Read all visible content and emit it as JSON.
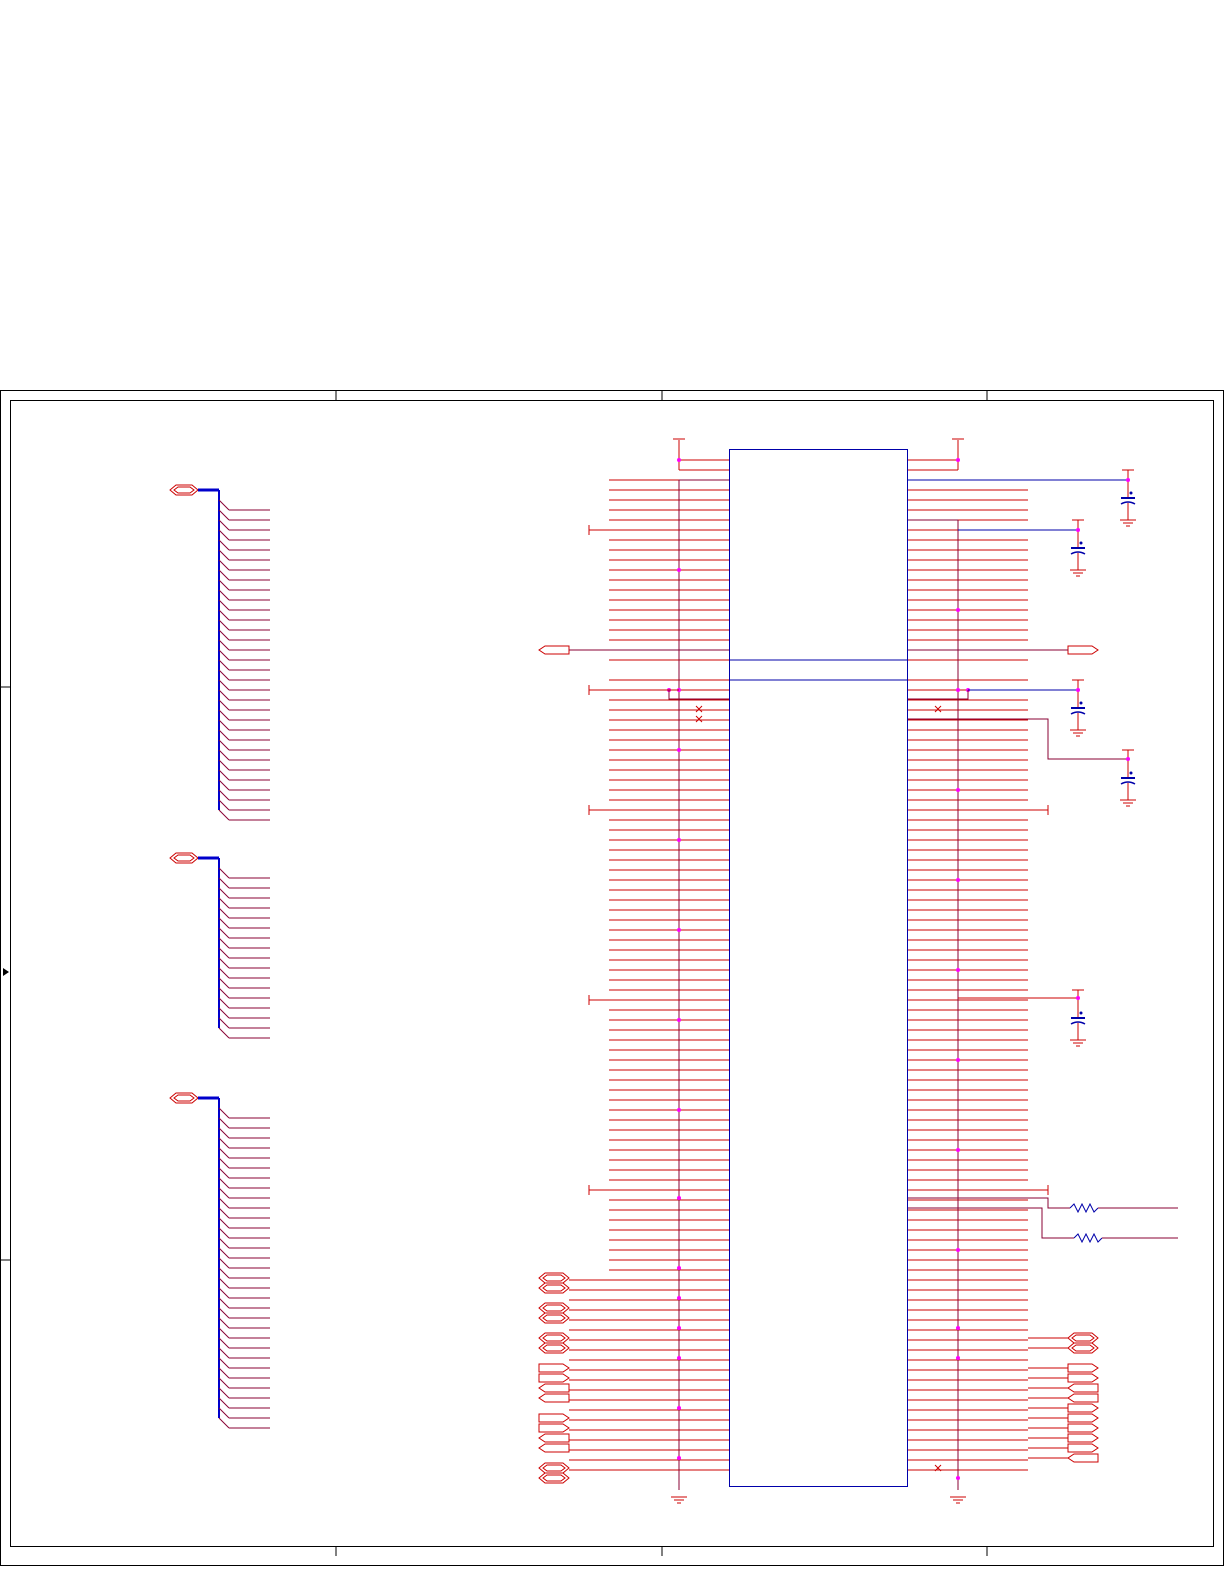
{
  "colors": {
    "wire": "#cc0000",
    "bus": "#0000cc",
    "bus_entry": "#880033",
    "junction": "#ff00ff",
    "component": "#0000aa",
    "frame": "#000000",
    "cap_plate": "#0000aa"
  },
  "frame": {
    "zones_top": 4,
    "zones_left": 3
  },
  "buses": {
    "bus_a_entries": 32,
    "bus_b_entries": 17,
    "bus_c_entries": 32
  },
  "ic": {
    "left_pins": 100,
    "right_pins": 100
  },
  "passives": {
    "capacitors": 5,
    "resistors": 2
  },
  "port_icons": [
    "bidirectional-port-icon",
    "output-port-icon",
    "input-port-icon",
    "ground-icon",
    "power-icon",
    "capacitor-icon",
    "resistor-icon",
    "no-connect-icon"
  ]
}
